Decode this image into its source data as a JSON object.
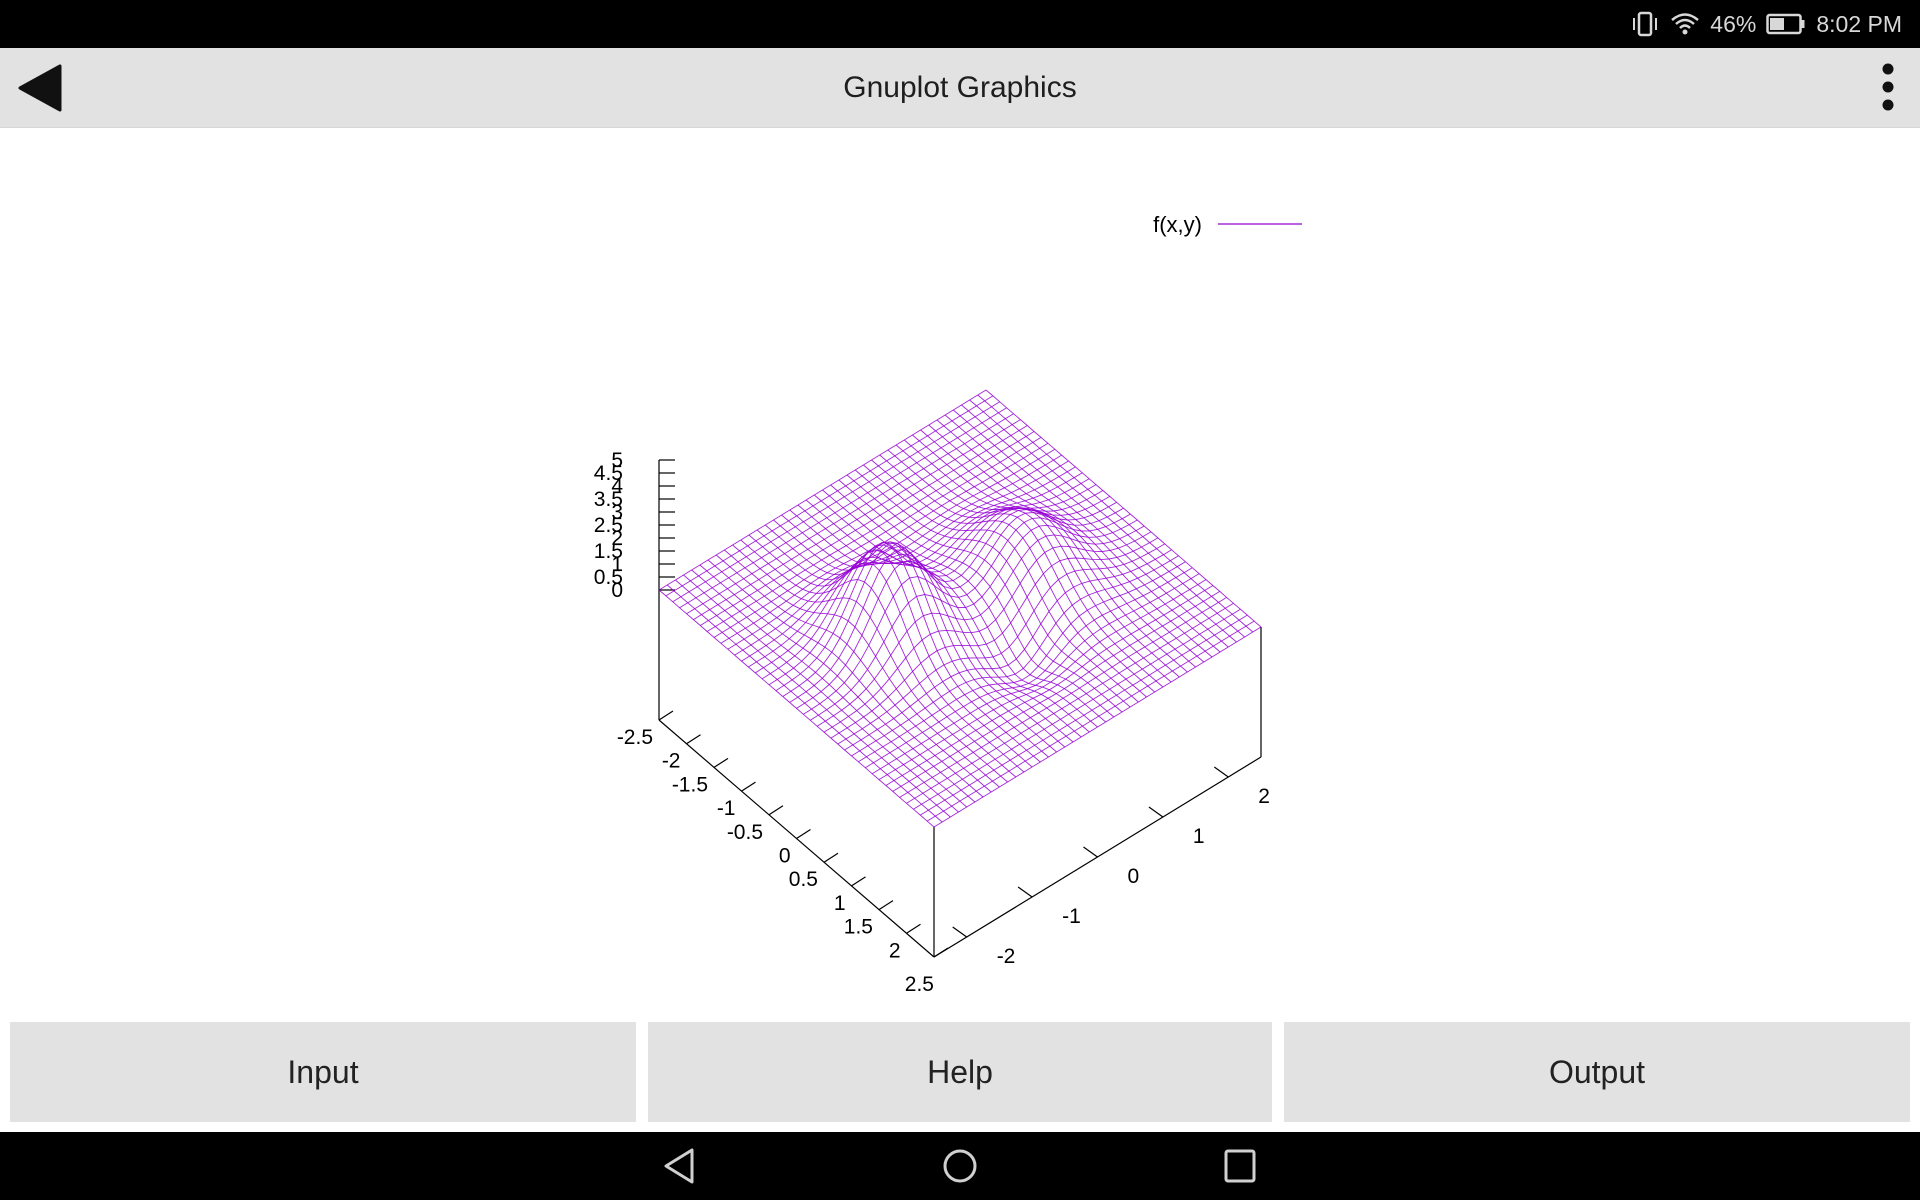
{
  "status_bar": {
    "battery_percent": "46%",
    "time": "8:02 PM",
    "icons": [
      "vibrate-icon",
      "wifi-icon",
      "battery-icon"
    ]
  },
  "app_bar": {
    "title": "Gnuplot Graphics",
    "back_icon": "back-arrow-icon",
    "menu_icon": "overflow-menu-icon"
  },
  "chart_data": {
    "type": "surface3d",
    "legend": {
      "label": "f(x,y)",
      "placement": "top-right"
    },
    "color": "#9400d3",
    "z_ticks": [
      "5",
      "4.5",
      "4",
      "3.5",
      "3",
      "2.5",
      "2",
      "1.5",
      "1",
      "0.5",
      "0"
    ],
    "x_ticks": [
      "-2.5",
      "-2",
      "-1.5",
      "-1",
      "-0.5",
      "0",
      "0.5",
      "1",
      "1.5",
      "2",
      "2.5"
    ],
    "y_ticks": [
      "-2",
      "-1",
      "0",
      "1",
      "2"
    ],
    "x_range": [
      -2.5,
      2.5
    ],
    "y_range": [
      -2.5,
      2.5
    ],
    "z_range": [
      0,
      5
    ]
  },
  "buttons": {
    "input": "Input",
    "help": "Help",
    "output": "Output"
  },
  "nav_bar": {
    "icons": [
      "nav-back-icon",
      "nav-home-icon",
      "nav-recents-icon"
    ]
  }
}
